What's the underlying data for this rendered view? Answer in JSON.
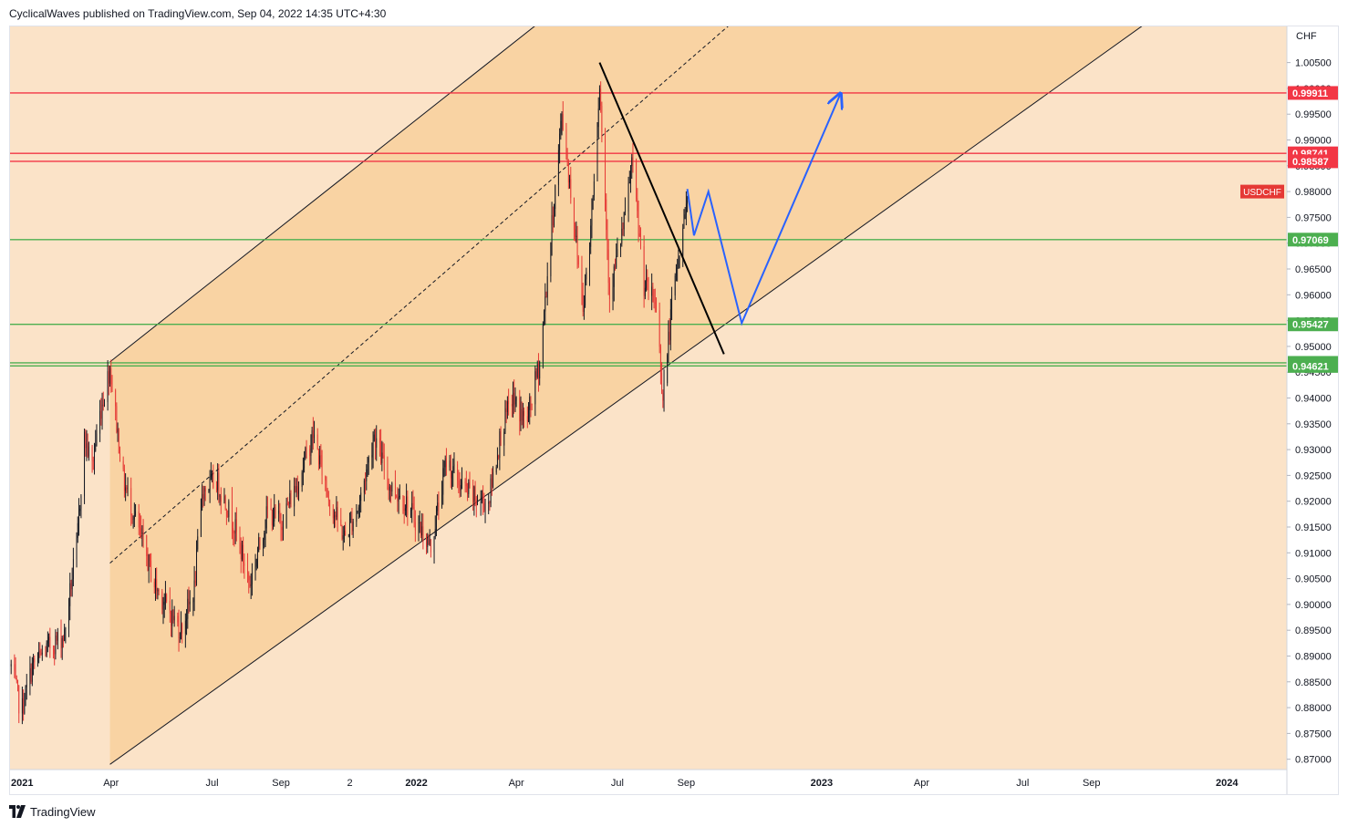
{
  "header": {
    "published_line": "CyclicalWaves published on TradingView.com, Sep 04, 2022 14:35 UTC+4:30"
  },
  "footer": {
    "brand": "TradingView"
  },
  "colors": {
    "background": "#fbe3c8",
    "channel_fill": "#f9d3a3",
    "up_candle": "#131722",
    "down_candle": "#e53935",
    "resistance": "#f23645",
    "support": "#4caf50",
    "projection": "#2962ff",
    "trendline": "#000000"
  },
  "chart_data": {
    "type": "candlestick",
    "symbol": "USDCHF",
    "currency_label": "CHF",
    "timeframe": "daily",
    "ylim": [
      0.868,
      1.012
    ],
    "y_ticks": [
      "0.87000",
      "0.87500",
      "0.88000",
      "0.88500",
      "0.89000",
      "0.89500",
      "0.90000",
      "0.90500",
      "0.91000",
      "0.91500",
      "0.92000",
      "0.92500",
      "0.93000",
      "0.93500",
      "0.94000",
      "0.94500",
      "0.95000",
      "0.95500",
      "0.96000",
      "0.96500",
      "0.97000",
      "0.97500",
      "0.98000",
      "0.98500",
      "0.99000",
      "0.99500",
      "1.00000",
      "1.00500"
    ],
    "x_ticks": [
      {
        "label": "2021",
        "date": "2021-01-01",
        "bold": true
      },
      {
        "label": "Apr",
        "date": "2021-04-01",
        "bold": false
      },
      {
        "label": "Jul",
        "date": "2021-07-01",
        "bold": false
      },
      {
        "label": "Sep",
        "date": "2021-09-01",
        "bold": false
      },
      {
        "label": "2",
        "date": "2021-11-02",
        "bold": false
      },
      {
        "label": "2022",
        "date": "2022-01-01",
        "bold": true
      },
      {
        "label": "Apr",
        "date": "2022-04-01",
        "bold": false
      },
      {
        "label": "Jul",
        "date": "2022-07-01",
        "bold": false
      },
      {
        "label": "Sep",
        "date": "2022-09-01",
        "bold": false
      },
      {
        "label": "2023",
        "date": "2023-01-01",
        "bold": true
      },
      {
        "label": "Apr",
        "date": "2023-04-01",
        "bold": false
      },
      {
        "label": "Jul",
        "date": "2023-07-01",
        "bold": false
      },
      {
        "label": "Sep",
        "date": "2023-09-01",
        "bold": false
      },
      {
        "label": "2024",
        "date": "2024-01-01",
        "bold": true
      }
    ],
    "horizontal_levels": [
      {
        "value": 0.99911,
        "label": "0.99911",
        "kind": "resistance"
      },
      {
        "value": 0.98741,
        "label": "0.98741",
        "kind": "resistance"
      },
      {
        "value": 0.98587,
        "label": "0.98587",
        "kind": "resistance"
      },
      {
        "value": 0.97069,
        "label": "0.97069",
        "kind": "support"
      },
      {
        "value": 0.95427,
        "label": "0.95427",
        "kind": "support"
      },
      {
        "value": 0.94681,
        "label": "0.94681",
        "kind": "support"
      },
      {
        "value": 0.94621,
        "label": "0.94621",
        "kind": "support"
      }
    ],
    "current_price": {
      "label": "USDCHF",
      "value": 0.98
    },
    "channel": {
      "upper": [
        {
          "date": "2021-03-31",
          "price": 0.947
        },
        {
          "date": "2022-06-15",
          "price": 1.022
        }
      ],
      "lower": [
        {
          "date": "2021-03-31",
          "price": 0.869
        },
        {
          "date": "2023-12-20",
          "price": 1.022
        }
      ],
      "median": [
        {
          "date": "2021-03-31",
          "price": 0.908
        },
        {
          "date": "2022-12-01",
          "price": 1.022
        }
      ],
      "fill_start_date": "2021-03-31"
    },
    "downtrend_line": [
      {
        "date": "2022-06-15",
        "price": 1.005
      },
      {
        "date": "2022-10-05",
        "price": 0.9485
      }
    ],
    "projection_path": [
      {
        "date": "2022-09-02",
        "price": 0.9805
      },
      {
        "date": "2022-09-08",
        "price": 0.9715
      },
      {
        "date": "2022-09-21",
        "price": 0.98
      },
      {
        "date": "2022-10-21",
        "price": 0.9545
      },
      {
        "date": "2023-01-18",
        "price": 0.999
      }
    ],
    "price_path": [
      {
        "date": "2021-01-01",
        "price": 0.888
      },
      {
        "date": "2021-01-10",
        "price": 0.879
      },
      {
        "date": "2021-01-20",
        "price": 0.888
      },
      {
        "date": "2021-02-05",
        "price": 0.892
      },
      {
        "date": "2021-02-18",
        "price": 0.894
      },
      {
        "date": "2021-02-24",
        "price": 0.904
      },
      {
        "date": "2021-03-01",
        "price": 0.911
      },
      {
        "date": "2021-03-08",
        "price": 0.932
      },
      {
        "date": "2021-03-15",
        "price": 0.927
      },
      {
        "date": "2021-03-22",
        "price": 0.937
      },
      {
        "date": "2021-03-31",
        "price": 0.946
      },
      {
        "date": "2021-04-12",
        "price": 0.924
      },
      {
        "date": "2021-04-25",
        "price": 0.915
      },
      {
        "date": "2021-05-10",
        "price": 0.904
      },
      {
        "date": "2021-05-25",
        "price": 0.898
      },
      {
        "date": "2021-06-03",
        "price": 0.895
      },
      {
        "date": "2021-06-15",
        "price": 0.903
      },
      {
        "date": "2021-06-22",
        "price": 0.922
      },
      {
        "date": "2021-07-05",
        "price": 0.924
      },
      {
        "date": "2021-07-20",
        "price": 0.916
      },
      {
        "date": "2021-08-04",
        "price": 0.904
      },
      {
        "date": "2021-08-20",
        "price": 0.918
      },
      {
        "date": "2021-09-01",
        "price": 0.916
      },
      {
        "date": "2021-09-15",
        "price": 0.923
      },
      {
        "date": "2021-09-30",
        "price": 0.933
      },
      {
        "date": "2021-10-15",
        "price": 0.92
      },
      {
        "date": "2021-10-28",
        "price": 0.913
      },
      {
        "date": "2021-11-10",
        "price": 0.919
      },
      {
        "date": "2021-11-24",
        "price": 0.933
      },
      {
        "date": "2021-12-08",
        "price": 0.923
      },
      {
        "date": "2021-12-22",
        "price": 0.92
      },
      {
        "date": "2022-01-14",
        "price": 0.911
      },
      {
        "date": "2022-01-28",
        "price": 0.928
      },
      {
        "date": "2022-02-10",
        "price": 0.923
      },
      {
        "date": "2022-02-25",
        "price": 0.92
      },
      {
        "date": "2022-03-07",
        "price": 0.92
      },
      {
        "date": "2022-03-18",
        "price": 0.933
      },
      {
        "date": "2022-03-28",
        "price": 0.94
      },
      {
        "date": "2022-04-10",
        "price": 0.935
      },
      {
        "date": "2022-04-22",
        "price": 0.947
      },
      {
        "date": "2022-05-05",
        "price": 0.978
      },
      {
        "date": "2022-05-12",
        "price": 0.995
      },
      {
        "date": "2022-05-20",
        "price": 0.98
      },
      {
        "date": "2022-05-31",
        "price": 0.958
      },
      {
        "date": "2022-06-06",
        "price": 0.97
      },
      {
        "date": "2022-06-15",
        "price": 1.001
      },
      {
        "date": "2022-06-24",
        "price": 0.96
      },
      {
        "date": "2022-07-08",
        "price": 0.975
      },
      {
        "date": "2022-07-14",
        "price": 0.986
      },
      {
        "date": "2022-07-25",
        "price": 0.962
      },
      {
        "date": "2022-08-05",
        "price": 0.958
      },
      {
        "date": "2022-08-11",
        "price": 0.94
      },
      {
        "date": "2022-08-20",
        "price": 0.96
      },
      {
        "date": "2022-08-29",
        "price": 0.972
      },
      {
        "date": "2022-09-02",
        "price": 0.9805
      }
    ]
  }
}
